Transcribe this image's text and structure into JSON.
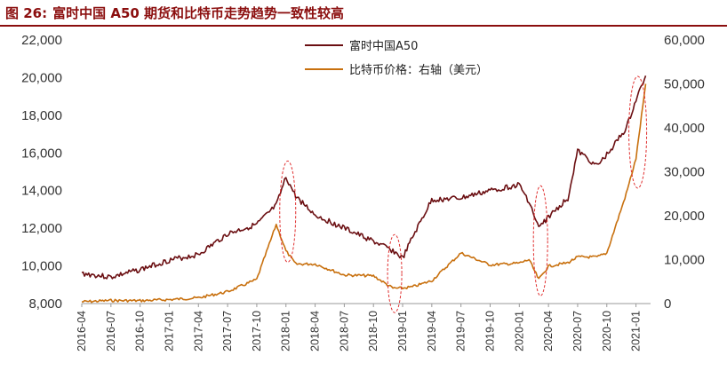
{
  "header": {
    "figure_no": "图 26:",
    "title": "富时中国 A50 期货和比特币走势趋势一致性较高"
  },
  "colors": {
    "title": "#8b0e0e",
    "series1": "#6b0f12",
    "series2": "#c8700e",
    "annotation": "#e03030"
  },
  "chart_data": {
    "type": "line",
    "title": "富时中国 A50 期货和比特币走势趋势一致性较高",
    "x": [
      "2016-04",
      "2016-07",
      "2016-10",
      "2017-01",
      "2017-04",
      "2017-07",
      "2017-10",
      "2018-01",
      "2018-04",
      "2018-07",
      "2018-10",
      "2019-01",
      "2019-04",
      "2019-07",
      "2019-10",
      "2020-01",
      "2020-04",
      "2020-07",
      "2020-10",
      "2021-01"
    ],
    "x_tick_labels": [
      "2016-04",
      "2016-07",
      "2016-10",
      "2017-01",
      "2017-04",
      "2017-07",
      "2017-10",
      "2018-01",
      "2018-04",
      "2018-07",
      "2018-10",
      "2019-01",
      "2019-04",
      "2019-07",
      "2019-10",
      "2020-01",
      "2020-04",
      "2020-07",
      "2020-10",
      "2021-01"
    ],
    "y_left": {
      "ylim": [
        8000,
        22000
      ],
      "ticks": [
        "8,000",
        "10,000",
        "12,000",
        "14,000",
        "16,000",
        "18,000",
        "20,000",
        "22,000"
      ]
    },
    "y_right": {
      "ylim": [
        0,
        60000
      ],
      "ticks": [
        "0",
        "10,000",
        "20,000",
        "30,000",
        "40,000",
        "50,000",
        "60,000"
      ]
    },
    "series": [
      {
        "name": "富时中国A50",
        "axis": "left",
        "x": [
          "2016-04",
          "2016-07",
          "2016-10",
          "2017-01",
          "2017-04",
          "2017-07",
          "2017-10",
          "2017-12",
          "2018-01",
          "2018-02",
          "2018-04",
          "2018-07",
          "2018-10",
          "2018-12",
          "2019-01",
          "2019-02",
          "2019-04",
          "2019-07",
          "2019-10",
          "2020-01",
          "2020-02",
          "2020-03",
          "2020-04",
          "2020-06",
          "2020-07",
          "2020-09",
          "2020-10",
          "2020-12",
          "2021-01",
          "2021-02"
        ],
        "values": [
          9600,
          9400,
          9800,
          10300,
          10600,
          11700,
          12200,
          13200,
          14700,
          13700,
          12700,
          12000,
          11300,
          10800,
          10400,
          11500,
          13500,
          13600,
          14000,
          14300,
          13400,
          12000,
          12600,
          13600,
          16100,
          15300,
          15900,
          17300,
          18800,
          20100
        ]
      },
      {
        "name": "比特币价格：右轴（美元）",
        "axis": "right",
        "x": [
          "2016-04",
          "2016-07",
          "2016-10",
          "2017-01",
          "2017-04",
          "2017-07",
          "2017-10",
          "2017-12",
          "2018-01",
          "2018-02",
          "2018-04",
          "2018-07",
          "2018-10",
          "2018-12",
          "2019-01",
          "2019-02",
          "2019-04",
          "2019-07",
          "2019-10",
          "2020-01",
          "2020-02",
          "2020-03",
          "2020-04",
          "2020-06",
          "2020-07",
          "2020-09",
          "2020-10",
          "2020-12",
          "2021-01",
          "2021-02"
        ],
        "values": [
          400,
          700,
          650,
          900,
          1300,
          2700,
          5500,
          18000,
          12000,
          9000,
          9000,
          6500,
          6300,
          3500,
          3500,
          3800,
          5200,
          11500,
          8800,
          9200,
          10000,
          5500,
          8500,
          9300,
          10600,
          10600,
          11500,
          25000,
          33000,
          50000
        ]
      }
    ],
    "annotations": [
      "dashed red ellipses around 2018-01, 2018-12, 2020-03, 2021-01"
    ],
    "legend_position": "top-center",
    "grid": false
  }
}
